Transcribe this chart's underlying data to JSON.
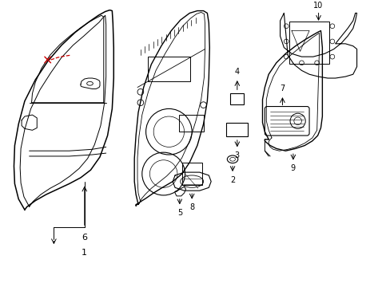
{
  "background_color": "#ffffff",
  "line_color": "#000000",
  "red_color": "#cc0000",
  "figsize": [
    4.89,
    3.6
  ],
  "dpi": 100
}
